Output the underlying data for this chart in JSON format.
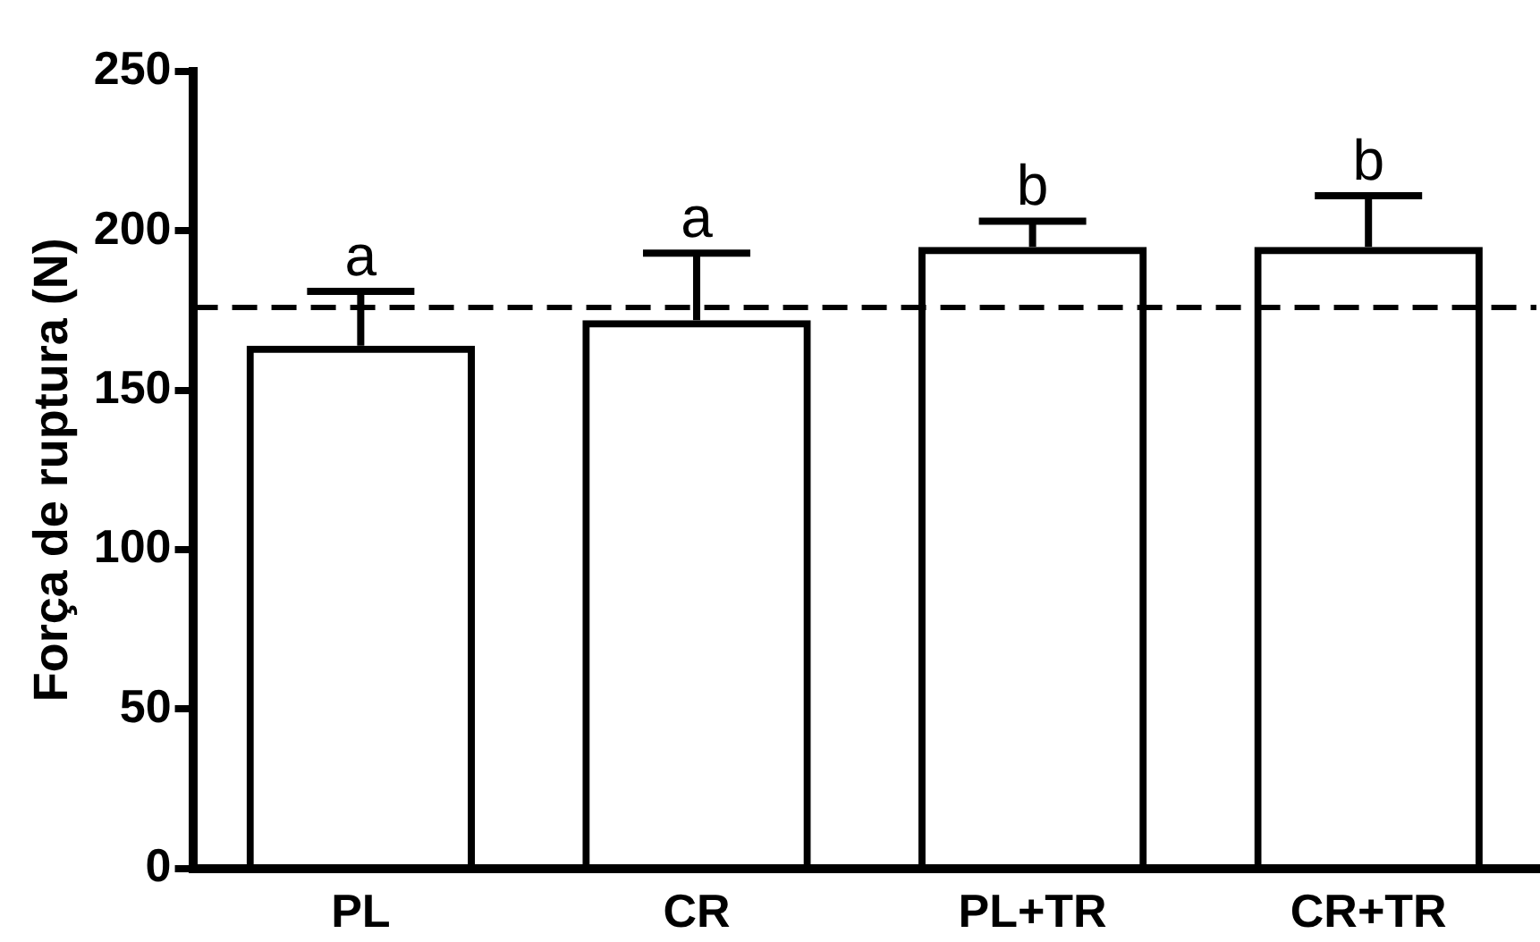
{
  "chart_data": {
    "type": "bar",
    "ylabel": "Força de ruptura (N)",
    "categories": [
      "PL",
      "CR",
      "PL+TR",
      "CR+TR"
    ],
    "values": [
      164,
      172,
      195,
      195
    ],
    "errors": [
      [
        164,
        181
      ],
      [
        172,
        193
      ],
      [
        195,
        203
      ],
      [
        195,
        211
      ]
    ],
    "color": "#000000",
    "ylim": [
      0,
      250
    ],
    "yticks": [
      0,
      50,
      100,
      150,
      200,
      250
    ],
    "grid": false,
    "ref_lines": [
      {
        "axis": "y",
        "value": 176,
        "line_style": "dashed",
        "color": "#000000"
      }
    ],
    "annotations": [
      {
        "text": "a",
        "x": "PL",
        "y": 181
      },
      {
        "text": "a",
        "x": "CR",
        "y": 193
      },
      {
        "text": "b",
        "x": "PL+TR",
        "y": 203
      },
      {
        "text": "b",
        "x": "CR+TR",
        "y": 211
      }
    ]
  }
}
